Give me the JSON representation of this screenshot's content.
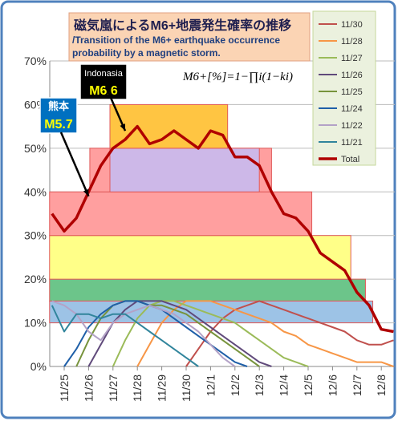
{
  "chart_data": {
    "type": "line",
    "title": "磁気嵐によるM6+地震発生確率の推移",
    "subtitle": "/Transition of the M6+ earthquake occurrence probability by a magnetic storm.",
    "formula": "M6+[%]=1−∏i(1−ki)",
    "annotations": [
      {
        "lines": [
          "熊本",
          "M5.7"
        ],
        "category": 3,
        "value": 39
      },
      {
        "lines": [
          "Indonasia",
          "M6.6"
        ],
        "category": 6,
        "value": 54
      }
    ],
    "categories": [
      null,
      "11/25",
      null,
      "11/26",
      null,
      "11/27",
      null,
      "11/28",
      null,
      "11/29",
      null,
      "11/30",
      null,
      "12/1",
      null,
      "12/2",
      null,
      "12/3",
      null,
      "12/4",
      null,
      "12/5",
      null,
      "12/6",
      null,
      "12/7",
      null,
      "12/8",
      null
    ],
    "ylim": [
      0,
      70
    ],
    "yticks": [
      {
        "value": 0,
        "label": "0%"
      },
      {
        "value": 10,
        "label": "10%"
      },
      {
        "value": 20,
        "label": "20%"
      },
      {
        "value": 30,
        "label": "30%"
      },
      {
        "value": 40,
        "label": "40%"
      },
      {
        "value": 50,
        "label": "50%"
      },
      {
        "value": 60,
        "label": "60%"
      },
      {
        "value": 70,
        "label": "70%"
      }
    ],
    "grid": true,
    "legend": "right",
    "bands": [
      {
        "range": [
          10,
          15
        ],
        "span": [
          -0.2,
          26.3
        ],
        "color": "#9dc3e6"
      },
      {
        "range": [
          15,
          20
        ],
        "span": [
          -0.2,
          25.7
        ],
        "color": "#6cc58a"
      },
      {
        "range": [
          20,
          30
        ],
        "span": [
          -0.2,
          24.5
        ],
        "color": "#ffff88"
      },
      {
        "range": [
          30,
          40
        ],
        "span": [
          -0.2,
          21.3
        ],
        "color": "#ff9f9f"
      },
      {
        "range": [
          40,
          50
        ],
        "span": [
          3.1,
          18
        ],
        "color": "#ff9f9f"
      },
      {
        "range": [
          40,
          50
        ],
        "span": [
          4.75,
          17
        ],
        "color": "#cdb8e8"
      },
      {
        "range": [
          50,
          60
        ],
        "span": [
          4.75,
          14.4
        ],
        "color": "#ffc542"
      }
    ],
    "series": [
      {
        "name": "11/30",
        "color": "#c0504d",
        "width": 2,
        "values": [
          null,
          null,
          null,
          null,
          null,
          null,
          null,
          null,
          null,
          null,
          null,
          0,
          4,
          8,
          11,
          13,
          14,
          15,
          14,
          13,
          12,
          11,
          10,
          9,
          8,
          6,
          5,
          5,
          6
        ]
      },
      {
        "name": "11/28",
        "color": "#f79646",
        "width": 2,
        "values": [
          null,
          null,
          null,
          null,
          null,
          null,
          null,
          0,
          5,
          10,
          13,
          15,
          15,
          15,
          14,
          13,
          12,
          11,
          10,
          8,
          7,
          5,
          4,
          3,
          2,
          1,
          1,
          1,
          0
        ]
      },
      {
        "name": "11/27",
        "color": "#9bbb59",
        "width": 2,
        "values": [
          null,
          null,
          null,
          null,
          null,
          0,
          6,
          11,
          14,
          15,
          15,
          14,
          13,
          12,
          11,
          10,
          8,
          6,
          4,
          2,
          1,
          0,
          null,
          null,
          null,
          null,
          null,
          null,
          null
        ]
      },
      {
        "name": "11/26",
        "color": "#604a7b",
        "width": 2,
        "values": [
          null,
          null,
          null,
          0,
          5,
          10,
          13,
          15,
          15,
          15,
          14,
          13,
          11,
          9,
          7,
          5,
          3,
          1,
          0,
          null,
          null,
          null,
          null,
          null,
          null,
          null,
          null,
          null,
          null
        ]
      },
      {
        "name": "11/25",
        "color": "#77933c",
        "width": 2,
        "values": [
          null,
          null,
          0,
          6,
          11,
          14,
          15,
          15,
          14,
          14,
          13,
          12,
          10,
          8,
          6,
          4,
          2,
          0,
          null,
          null,
          null,
          null,
          null,
          null,
          null,
          null,
          null,
          null,
          null
        ]
      },
      {
        "name": "11/24",
        "color": "#1f5fa8",
        "width": 2,
        "values": [
          null,
          0,
          4,
          9,
          12,
          14,
          15,
          15,
          14,
          13,
          11,
          9,
          7,
          5,
          3,
          1,
          0,
          null,
          null,
          null,
          null,
          null,
          null,
          null,
          null,
          null,
          null,
          null,
          null
        ]
      },
      {
        "name": "11/22",
        "color": "#b3a2c7",
        "width": 2,
        "values": [
          15,
          14,
          12,
          8,
          6,
          10,
          12,
          13,
          14,
          13,
          12,
          10,
          8,
          5,
          2,
          0,
          null,
          null,
          null,
          null,
          null,
          null,
          null,
          null,
          null,
          null,
          null,
          null,
          null
        ]
      },
      {
        "name": "11/21",
        "color": "#31859c",
        "width": 2,
        "values": [
          14,
          8,
          12,
          12,
          11,
          12,
          12,
          10,
          8,
          6,
          4,
          2,
          0,
          null,
          null,
          null,
          null,
          null,
          null,
          null,
          null,
          null,
          null,
          null,
          null,
          null,
          null,
          null,
          null
        ]
      },
      {
        "name": "Total",
        "color": "#b00000",
        "width": 3.5,
        "values": [
          35,
          31,
          34,
          40,
          46,
          50,
          52,
          55,
          51,
          52,
          54,
          52,
          50,
          54,
          53,
          48,
          48,
          46,
          40,
          35,
          34,
          31,
          26,
          24,
          22,
          17,
          14,
          8.5,
          8
        ]
      }
    ]
  }
}
